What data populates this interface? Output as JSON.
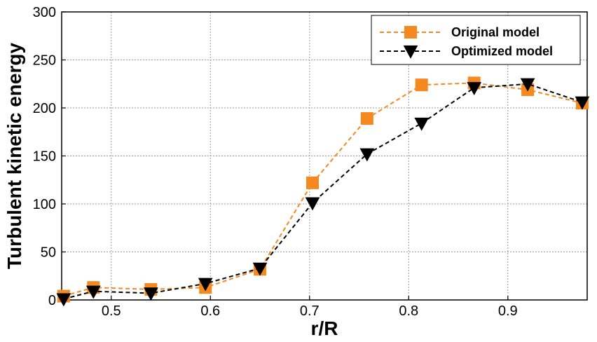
{
  "chart_data": {
    "type": "line",
    "xlabel": "r/R",
    "ylabel": "Turbulent kinetic energy",
    "xlim": [
      0.45,
      0.98
    ],
    "ylim": [
      0,
      300
    ],
    "xticks": [
      0.5,
      0.6,
      0.7,
      0.8,
      0.9
    ],
    "xtick_labels": [
      "0.5",
      "0.6",
      "0.7",
      "0.8",
      "0.9"
    ],
    "yticks": [
      0,
      50,
      100,
      150,
      200,
      250,
      300
    ],
    "ytick_labels": [
      "0",
      "50",
      "100",
      "150",
      "200",
      "250",
      "300"
    ],
    "grid": true,
    "legend_position": "top-right",
    "series": [
      {
        "name": "Original model",
        "color": "#f5891f",
        "marker": "square",
        "line_style": "dashed",
        "x": [
          0.452,
          0.482,
          0.54,
          0.595,
          0.65,
          0.703,
          0.758,
          0.813,
          0.866,
          0.92,
          0.975
        ],
        "y": [
          4,
          13,
          11,
          13,
          32,
          122,
          189,
          224,
          226,
          219,
          205
        ]
      },
      {
        "name": "Optimized model",
        "color": "#000000",
        "marker": "triangle-down",
        "line_style": "dashed",
        "x": [
          0.452,
          0.482,
          0.54,
          0.595,
          0.65,
          0.703,
          0.758,
          0.813,
          0.866,
          0.92,
          0.975
        ],
        "y": [
          1,
          9,
          7,
          17,
          33,
          101,
          152,
          184,
          221,
          225,
          206
        ]
      }
    ]
  }
}
